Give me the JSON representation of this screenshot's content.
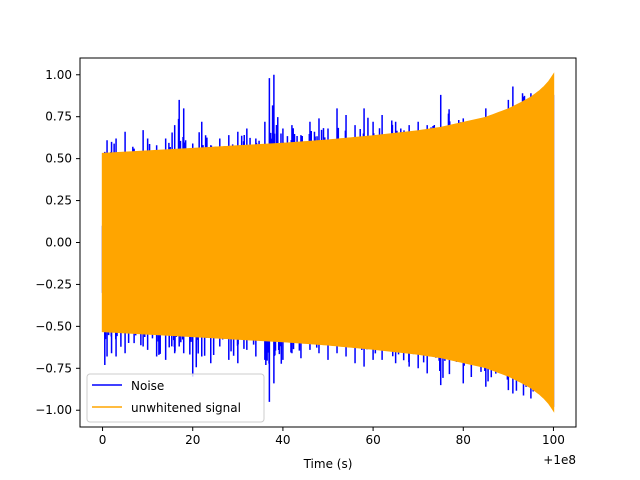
{
  "chart_data": {
    "type": "line",
    "title": "",
    "xlabel": "Time (s)",
    "ylabel": "",
    "x_offset_label": "+1e8",
    "xlim": [
      -5,
      105
    ],
    "ylim": [
      -1.1,
      1.1
    ],
    "xticks": [
      0,
      20,
      40,
      60,
      80,
      100
    ],
    "xtick_labels": [
      "0",
      "20",
      "40",
      "60",
      "80",
      "100"
    ],
    "yticks": [
      -1.0,
      -0.75,
      -0.5,
      -0.25,
      0.0,
      0.25,
      0.5,
      0.75,
      1.0
    ],
    "ytick_labels": [
      "−1.00",
      "−0.75",
      "−0.50",
      "−0.25",
      "0.00",
      "0.25",
      "0.50",
      "0.75",
      "1.00"
    ],
    "grid": false,
    "legend_position": "lower-left",
    "series": [
      {
        "name": "Noise",
        "color": "#0000ff",
        "envelope": {
          "x": [
            0,
            0.5,
            1,
            2,
            3,
            5,
            7,
            9,
            10,
            12,
            14,
            16,
            17,
            18,
            20,
            22,
            24,
            26,
            28,
            30,
            32,
            34,
            36,
            37,
            38,
            40,
            42,
            44,
            46,
            48,
            50,
            52,
            54,
            56,
            58,
            60,
            62,
            65,
            68,
            70,
            72,
            75,
            80,
            85,
            90,
            91,
            95,
            100
          ],
          "upper": [
            0.1,
            0.54,
            0.61,
            0.6,
            0.62,
            0.66,
            0.56,
            0.67,
            0.62,
            0.58,
            0.62,
            0.7,
            0.85,
            0.8,
            0.59,
            0.72,
            0.58,
            0.62,
            0.64,
            0.66,
            0.68,
            0.62,
            0.72,
            0.98,
            1.0,
            0.68,
            0.7,
            0.64,
            0.72,
            0.74,
            0.68,
            0.8,
            0.76,
            0.7,
            0.8,
            0.72,
            0.76,
            0.72,
            0.7,
            0.72,
            0.7,
            0.88,
            0.74,
            0.8,
            0.85,
            0.93,
            0.89,
            0.88
          ],
          "lower": [
            -0.3,
            -0.73,
            -0.68,
            -0.66,
            -0.68,
            -0.66,
            -0.6,
            -0.62,
            -0.64,
            -0.68,
            -0.7,
            -0.66,
            -0.62,
            -0.66,
            -0.8,
            -0.68,
            -0.72,
            -0.62,
            -0.7,
            -0.72,
            -0.64,
            -0.68,
            -0.7,
            -0.95,
            -0.84,
            -0.7,
            -0.66,
            -0.69,
            -0.64,
            -0.66,
            -0.7,
            -0.66,
            -0.68,
            -0.72,
            -0.74,
            -0.7,
            -0.7,
            -0.72,
            -0.74,
            -0.75,
            -0.78,
            -0.85,
            -0.84,
            -0.86,
            -0.88,
            -0.9,
            -0.93,
            -0.98
          ]
        }
      },
      {
        "name": "unwhitened signal",
        "color": "#ffa500",
        "envelope": {
          "x": [
            0,
            10,
            20,
            30,
            40,
            50,
            60,
            70,
            75,
            80,
            85,
            90,
            93,
            95,
            97,
            98,
            99,
            100
          ],
          "upper": [
            0.53,
            0.545,
            0.56,
            0.575,
            0.59,
            0.61,
            0.635,
            0.665,
            0.685,
            0.715,
            0.745,
            0.795,
            0.835,
            0.865,
            0.905,
            0.93,
            0.96,
            1.0
          ],
          "lower": [
            -0.53,
            -0.545,
            -0.56,
            -0.575,
            -0.59,
            -0.61,
            -0.635,
            -0.665,
            -0.685,
            -0.715,
            -0.745,
            -0.795,
            -0.835,
            -0.865,
            -0.905,
            -0.93,
            -0.96,
            -1.0
          ]
        }
      }
    ]
  }
}
